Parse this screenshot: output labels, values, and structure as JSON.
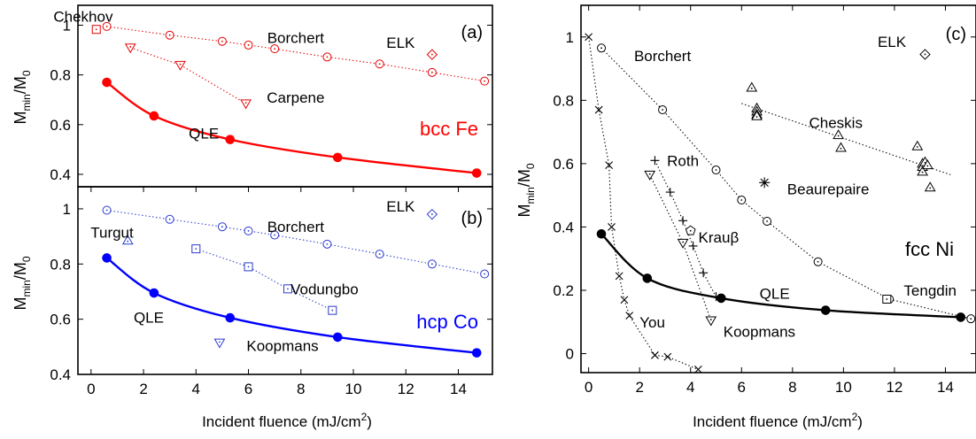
{
  "chart_data": [
    {
      "type": "line",
      "panel_label": "(a)",
      "material": "bcc Fe",
      "ylabel": "M_min/M_0",
      "xlabel": "",
      "xlim": [
        -0.5,
        15.3
      ],
      "ylim": [
        0.35,
        1.08
      ],
      "xticks": [],
      "yticks": [
        0.4,
        0.6,
        0.8,
        1
      ],
      "ytick_labels": [
        "0.4",
        "0.6",
        "0.8",
        "1"
      ],
      "colors": {
        "main": "#ff0000",
        "accent": "#e60000"
      },
      "series": [
        {
          "name": "QLE",
          "marker": "filled-circle",
          "style": "solid",
          "x": [
            0.6,
            2.4,
            5.3,
            9.4,
            14.7
          ],
          "y": [
            0.77,
            0.635,
            0.54,
            0.468,
            0.405
          ],
          "label_at": [
            4.3,
            0.565
          ]
        },
        {
          "name": "Borchert",
          "marker": "circle-dot",
          "style": "dotted",
          "x": [
            0.6,
            3.0,
            5.0,
            6.0,
            7.0,
            9.0,
            11.0,
            13.0,
            15.0
          ],
          "y": [
            0.995,
            0.96,
            0.935,
            0.92,
            0.905,
            0.872,
            0.844,
            0.81,
            0.775
          ],
          "label_at": [
            7.8,
            0.95
          ]
        },
        {
          "name": "Carpene",
          "marker": "triangle-down-dot",
          "style": "dotted",
          "x": [
            1.5,
            3.4,
            5.9
          ],
          "y": [
            0.91,
            0.84,
            0.685
          ],
          "label_at": [
            7.8,
            0.71
          ]
        },
        {
          "name": "Chekhov",
          "marker": "square-dot",
          "style": "none",
          "x": [
            0.2
          ],
          "y": [
            0.983
          ],
          "label_at": [
            -0.3,
            1.035
          ]
        },
        {
          "name": "ELK",
          "marker": "diamond-dot",
          "style": "none",
          "x": [
            13.0
          ],
          "y": [
            0.882
          ],
          "label_at": [
            11.8,
            0.93
          ]
        }
      ]
    },
    {
      "type": "line",
      "panel_label": "(b)",
      "material": "hcp Co",
      "ylabel": "M_min/M_0",
      "xlabel": "Incident fluence (mJ/cm2)",
      "xlim": [
        -0.5,
        15.3
      ],
      "ylim": [
        0.4,
        1.08
      ],
      "xticks": [
        0,
        2,
        4,
        6,
        8,
        10,
        12,
        14
      ],
      "yticks": [
        0.4,
        0.6,
        0.8,
        1
      ],
      "ytick_labels": [
        "0.4",
        "0.6",
        "0.8",
        "1"
      ],
      "colors": {
        "main": "#0000ff",
        "accent": "#2a3acc"
      },
      "series": [
        {
          "name": "QLE",
          "marker": "filled-circle",
          "style": "solid",
          "x": [
            0.6,
            2.4,
            5.3,
            9.4,
            14.7
          ],
          "y": [
            0.822,
            0.695,
            0.605,
            0.535,
            0.478
          ],
          "label_at": [
            2.2,
            0.607
          ]
        },
        {
          "name": "Borchert",
          "marker": "circle-dot",
          "style": "dotted",
          "x": [
            0.6,
            3.0,
            5.0,
            6.0,
            7.0,
            9.0,
            11.0,
            13.0,
            15.0
          ],
          "y": [
            0.995,
            0.962,
            0.935,
            0.92,
            0.905,
            0.872,
            0.836,
            0.8,
            0.764
          ],
          "label_at": [
            7.8,
            0.935
          ]
        },
        {
          "name": "Vodungbo",
          "marker": "square-dot",
          "style": "dotted",
          "x": [
            4.0,
            6.0,
            7.5,
            9.2
          ],
          "y": [
            0.855,
            0.79,
            0.71,
            0.632
          ],
          "label_at": [
            8.9,
            0.71
          ]
        },
        {
          "name": "Turgut",
          "marker": "triangle-up-dot",
          "style": "none",
          "x": [
            1.4
          ],
          "y": [
            0.885
          ],
          "label_at": [
            0.8,
            0.915
          ]
        },
        {
          "name": "Koopmans",
          "marker": "triangle-down-dot",
          "style": "none",
          "x": [
            4.9
          ],
          "y": [
            0.515
          ],
          "label_at": [
            7.3,
            0.505
          ]
        },
        {
          "name": "ELK",
          "marker": "diamond-dot",
          "style": "none",
          "x": [
            13.0
          ],
          "y": [
            0.98
          ],
          "label_at": [
            11.8,
            1.01
          ]
        }
      ]
    },
    {
      "type": "line",
      "panel_label": "(c)",
      "material": "fcc Ni",
      "ylabel": "M_min/M_0",
      "xlabel": "Incident fluence (mJ/cm2)",
      "xlim": [
        -0.3,
        15.2
      ],
      "ylim": [
        -0.06,
        1.1
      ],
      "xticks": [
        0,
        2,
        4,
        6,
        8,
        10,
        12,
        14
      ],
      "yticks": [
        0,
        0.2,
        0.4,
        0.6,
        0.8,
        1
      ],
      "ytick_labels": [
        "0",
        "0.2",
        "0.4",
        "0.6",
        "0.8",
        "1"
      ],
      "colors": {
        "main": "#000000"
      },
      "series": [
        {
          "name": "QLE",
          "marker": "filled-circle",
          "style": "solid",
          "x": [
            0.5,
            2.3,
            5.2,
            9.3,
            14.6
          ],
          "y": [
            0.378,
            0.238,
            0.175,
            0.137,
            0.115
          ],
          "label_at": [
            7.3,
            0.19
          ]
        },
        {
          "name": "Borchert",
          "marker": "circle-dot",
          "style": "dotted",
          "x": [
            0.5,
            2.9,
            5.0,
            6.0,
            7.0,
            9.0,
            11.8,
            15.0
          ],
          "y": [
            0.965,
            0.77,
            0.58,
            0.485,
            0.418,
            0.29,
            0.172,
            0.11
          ],
          "label_at": [
            2.9,
            0.94
          ]
        },
        {
          "name": "You",
          "marker": "cross",
          "style": "dotted",
          "x": [
            0.0,
            0.4,
            0.8,
            0.9,
            1.2,
            1.4,
            1.6,
            2.6,
            3.1,
            4.3
          ],
          "y": [
            1.0,
            0.77,
            0.595,
            0.4,
            0.245,
            0.17,
            0.12,
            -0.005,
            -0.01,
            -0.05
          ],
          "label_at": [
            2.5,
            0.1
          ]
        },
        {
          "name": "Roth",
          "marker": "plus",
          "style": "dotted",
          "x": [
            2.6,
            3.2,
            3.7,
            4.1,
            4.5,
            5.0
          ],
          "y": [
            0.61,
            0.51,
            0.42,
            0.34,
            0.255,
            0.18
          ],
          "label_at": [
            3.7,
            0.61
          ]
        },
        {
          "name": "Koopmans",
          "marker": "triangle-down-dot",
          "style": "dotted",
          "x": [
            2.4,
            3.7,
            4.8
          ],
          "y": [
            0.565,
            0.35,
            0.105
          ],
          "label_at": [
            6.7,
            0.07
          ]
        },
        {
          "name": "Krauβ",
          "marker": "pentagon-dot",
          "style": "none",
          "x": [
            4.0
          ],
          "y": [
            0.388
          ],
          "label_at": [
            5.1,
            0.368
          ]
        },
        {
          "name": "Beaurepaire",
          "marker": "asterisk",
          "style": "none",
          "x": [
            6.9
          ],
          "y": [
            0.54
          ],
          "label_at": [
            9.4,
            0.52
          ]
        },
        {
          "name": "Cheskis",
          "marker": "triangle-up-dot",
          "style": "dotted",
          "x": [
            6.4,
            6.6,
            6.6,
            6.6,
            6.6,
            9.8,
            9.9,
            12.9,
            13.1,
            13.1,
            13.1,
            13.2,
            13.3,
            13.4
          ],
          "y": [
            0.84,
            0.775,
            0.765,
            0.755,
            0.75,
            0.69,
            0.65,
            0.655,
            0.6,
            0.59,
            0.575,
            0.605,
            0.595,
            0.525
          ],
          "label_at": [
            9.7,
            0.73
          ]
        },
        {
          "name": "Tengdin",
          "marker": "square-dot",
          "style": "none",
          "x": [
            11.7
          ],
          "y": [
            0.172
          ],
          "label_at": [
            13.4,
            0.2
          ]
        },
        {
          "name": "ELK",
          "marker": "diamond-dot",
          "style": "none",
          "x": [
            13.2
          ],
          "y": [
            0.945
          ],
          "label_at": [
            11.9,
            0.985
          ]
        }
      ]
    }
  ]
}
